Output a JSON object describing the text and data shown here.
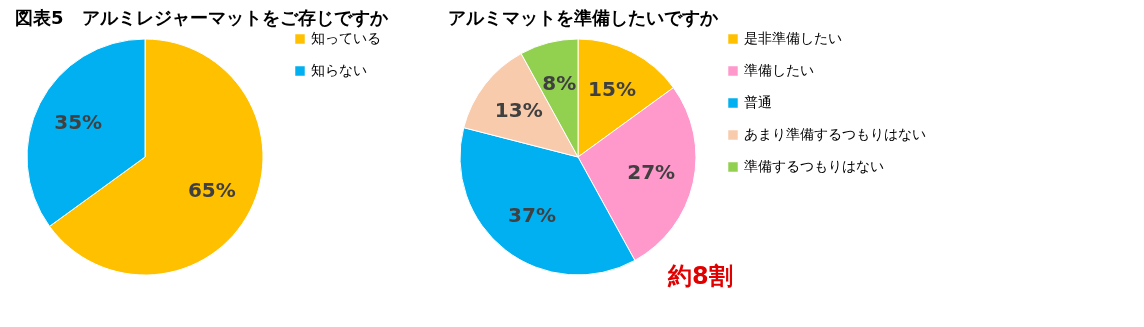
{
  "chart_data": [
    {
      "type": "pie",
      "title": "図表5　アルミレジャーマットをご存じですか",
      "categories": [
        "知っている",
        "知らない"
      ],
      "values": [
        65,
        35
      ],
      "colors": [
        "#ffc000",
        "#00b0f0"
      ],
      "value_labels": [
        "65%",
        "35%"
      ],
      "legend": "right"
    },
    {
      "type": "pie",
      "title": "アルミマットを準備したいですか",
      "categories": [
        "是非準備したい",
        "準備したい",
        "普通",
        "あまり準備するつもりはない",
        "準備するつもりはない"
      ],
      "values": [
        15,
        27,
        37,
        13,
        8
      ],
      "colors": [
        "#ffc000",
        "#ff99cc",
        "#00b0f0",
        "#f8cbad",
        "#92d050"
      ],
      "value_labels": [
        "15%",
        "27%",
        "37%",
        "13%",
        "8%"
      ],
      "legend": "right",
      "annotations": [
        "約8割"
      ]
    }
  ]
}
